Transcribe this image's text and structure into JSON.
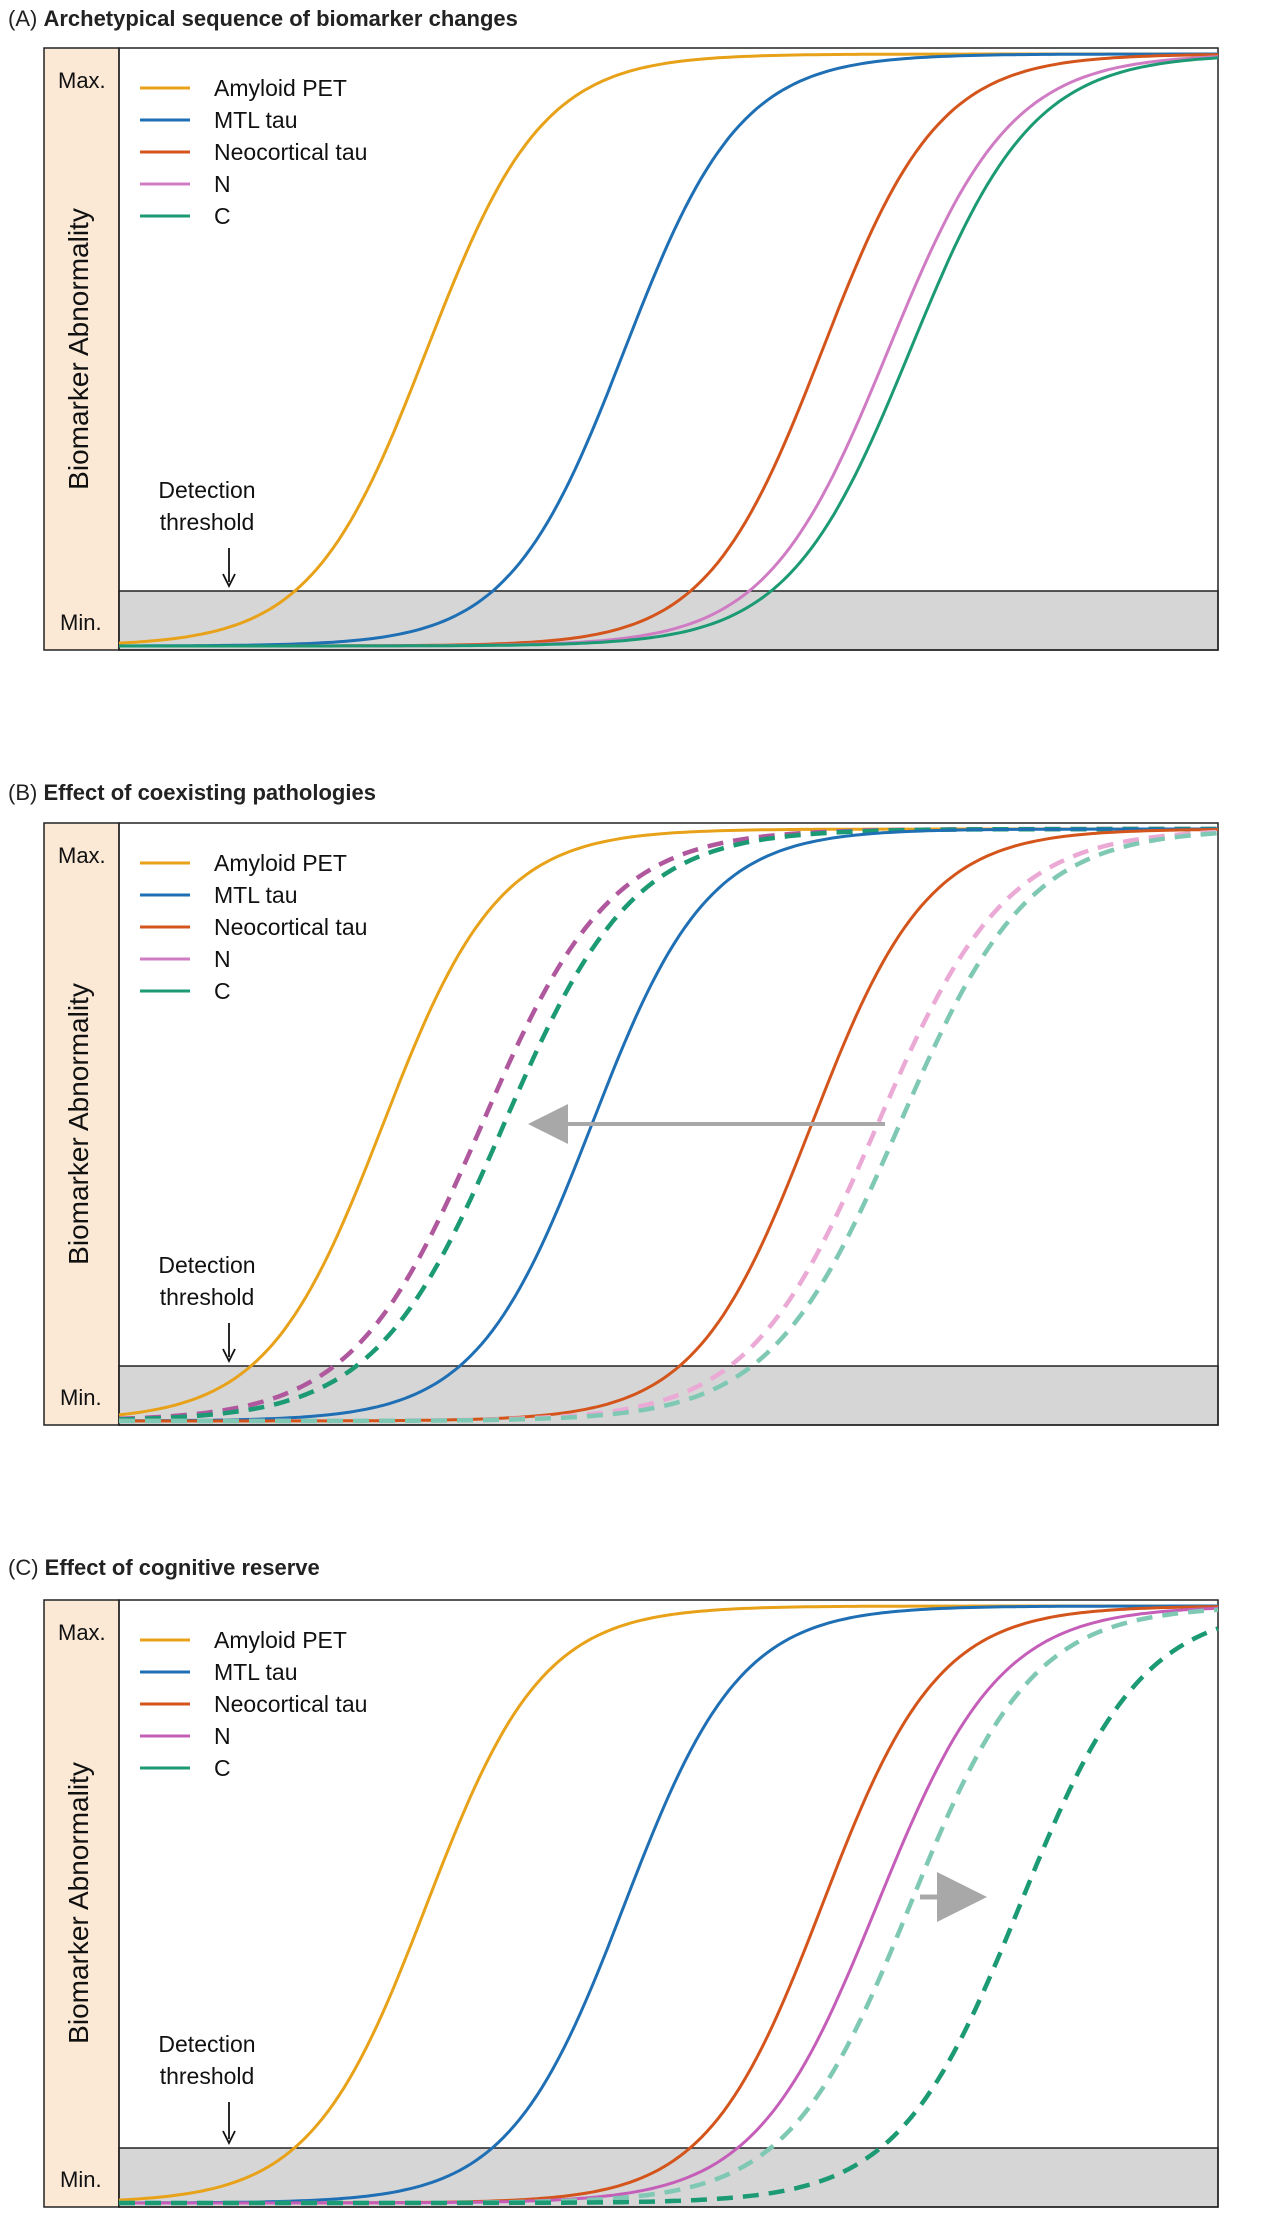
{
  "chart_data": [
    {
      "panel": "A",
      "type": "line",
      "title_prefix": "(A)",
      "title": "Archetypical sequence of biomarker changes",
      "ylabel": "Biomarker Abnormality",
      "y_max_label": "Max.",
      "y_min_label": "Min.",
      "threshold_label_line1": "Detection",
      "threshold_label_line2": "threshold",
      "xlim": [
        0,
        100
      ],
      "ylim": [
        0,
        1
      ],
      "detection_threshold": 0.1,
      "legend": [
        "Amyloid PET",
        "MTL tau",
        "Neocortical tau",
        "N",
        "C"
      ],
      "series": [
        {
          "name": "Amyloid PET",
          "color": "#E8A21A",
          "style": "solid",
          "midpoint": 28,
          "slope": 0.19
        },
        {
          "name": "MTL tau",
          "color": "#1F6FB5",
          "style": "solid",
          "midpoint": 46,
          "slope": 0.19
        },
        {
          "name": "Neocortical tau",
          "color": "#D4551B",
          "style": "solid",
          "midpoint": 64,
          "slope": 0.19
        },
        {
          "name": "N",
          "color": "#D07CC4",
          "style": "solid",
          "midpoint": 70,
          "slope": 0.18
        },
        {
          "name": "C",
          "color": "#1B9A74",
          "style": "solid",
          "midpoint": 72,
          "slope": 0.18
        }
      ]
    },
    {
      "panel": "B",
      "type": "line",
      "title_prefix": "(B)",
      "title": "Effect of coexisting pathologies",
      "ylabel": "Biomarker Abnormality",
      "y_max_label": "Max.",
      "y_min_label": "Min.",
      "threshold_label_line1": "Detection",
      "threshold_label_line2": "threshold",
      "xlim": [
        0,
        100
      ],
      "ylim": [
        0,
        1
      ],
      "detection_threshold": 0.1,
      "legend": [
        "Amyloid PET",
        "MTL tau",
        "Neocortical tau",
        "N",
        "C"
      ],
      "annotation": "arrow pointing left from shifted N/C curves to earlier N/C curves",
      "series": [
        {
          "name": "Amyloid PET",
          "color": "#E8A21A",
          "style": "solid",
          "midpoint": 24,
          "slope": 0.19
        },
        {
          "name": "N (shifted earlier)",
          "color": "#B0589E",
          "style": "dashed",
          "midpoint": 33,
          "slope": 0.17
        },
        {
          "name": "C (shifted earlier)",
          "color": "#1B9A74",
          "style": "dashed",
          "midpoint": 35,
          "slope": 0.17
        },
        {
          "name": "MTL tau",
          "color": "#1F6FB5",
          "style": "solid",
          "midpoint": 43,
          "slope": 0.19
        },
        {
          "name": "Neocortical tau",
          "color": "#D4551B",
          "style": "solid",
          "midpoint": 63,
          "slope": 0.19
        },
        {
          "name": "N",
          "color": "#EBAAD6",
          "style": "dashed",
          "midpoint": 69,
          "slope": 0.17
        },
        {
          "name": "C",
          "color": "#7FC9B4",
          "style": "dashed",
          "midpoint": 71,
          "slope": 0.17
        }
      ]
    },
    {
      "panel": "C",
      "type": "line",
      "title_prefix": "(C)",
      "title": "Effect of cognitive reserve",
      "ylabel": "Biomarker Abnormality",
      "y_max_label": "Max.",
      "y_min_label": "Min.",
      "threshold_label_line1": "Detection",
      "threshold_label_line2": "threshold",
      "xlim": [
        0,
        100
      ],
      "ylim": [
        0,
        1
      ],
      "detection_threshold": 0.1,
      "legend": [
        "Amyloid PET",
        "MTL tau",
        "Neocortical tau",
        "N",
        "C"
      ],
      "annotation": "arrow pointing right from C curve to delayed C curve",
      "series": [
        {
          "name": "Amyloid PET",
          "color": "#E8A21A",
          "style": "solid",
          "midpoint": 28,
          "slope": 0.19
        },
        {
          "name": "MTL tau",
          "color": "#1F6FB5",
          "style": "solid",
          "midpoint": 46,
          "slope": 0.19
        },
        {
          "name": "Neocortical tau",
          "color": "#D4551B",
          "style": "solid",
          "midpoint": 64,
          "slope": 0.19
        },
        {
          "name": "N",
          "color": "#C45EB8",
          "style": "solid",
          "midpoint": 69,
          "slope": 0.18
        },
        {
          "name": "C",
          "color": "#7FC9B4",
          "style": "dashed",
          "midpoint": 72,
          "slope": 0.18
        },
        {
          "name": "C (delayed)",
          "color": "#1B9A74",
          "style": "dashed",
          "midpoint": 82,
          "slope": 0.18
        }
      ]
    }
  ]
}
